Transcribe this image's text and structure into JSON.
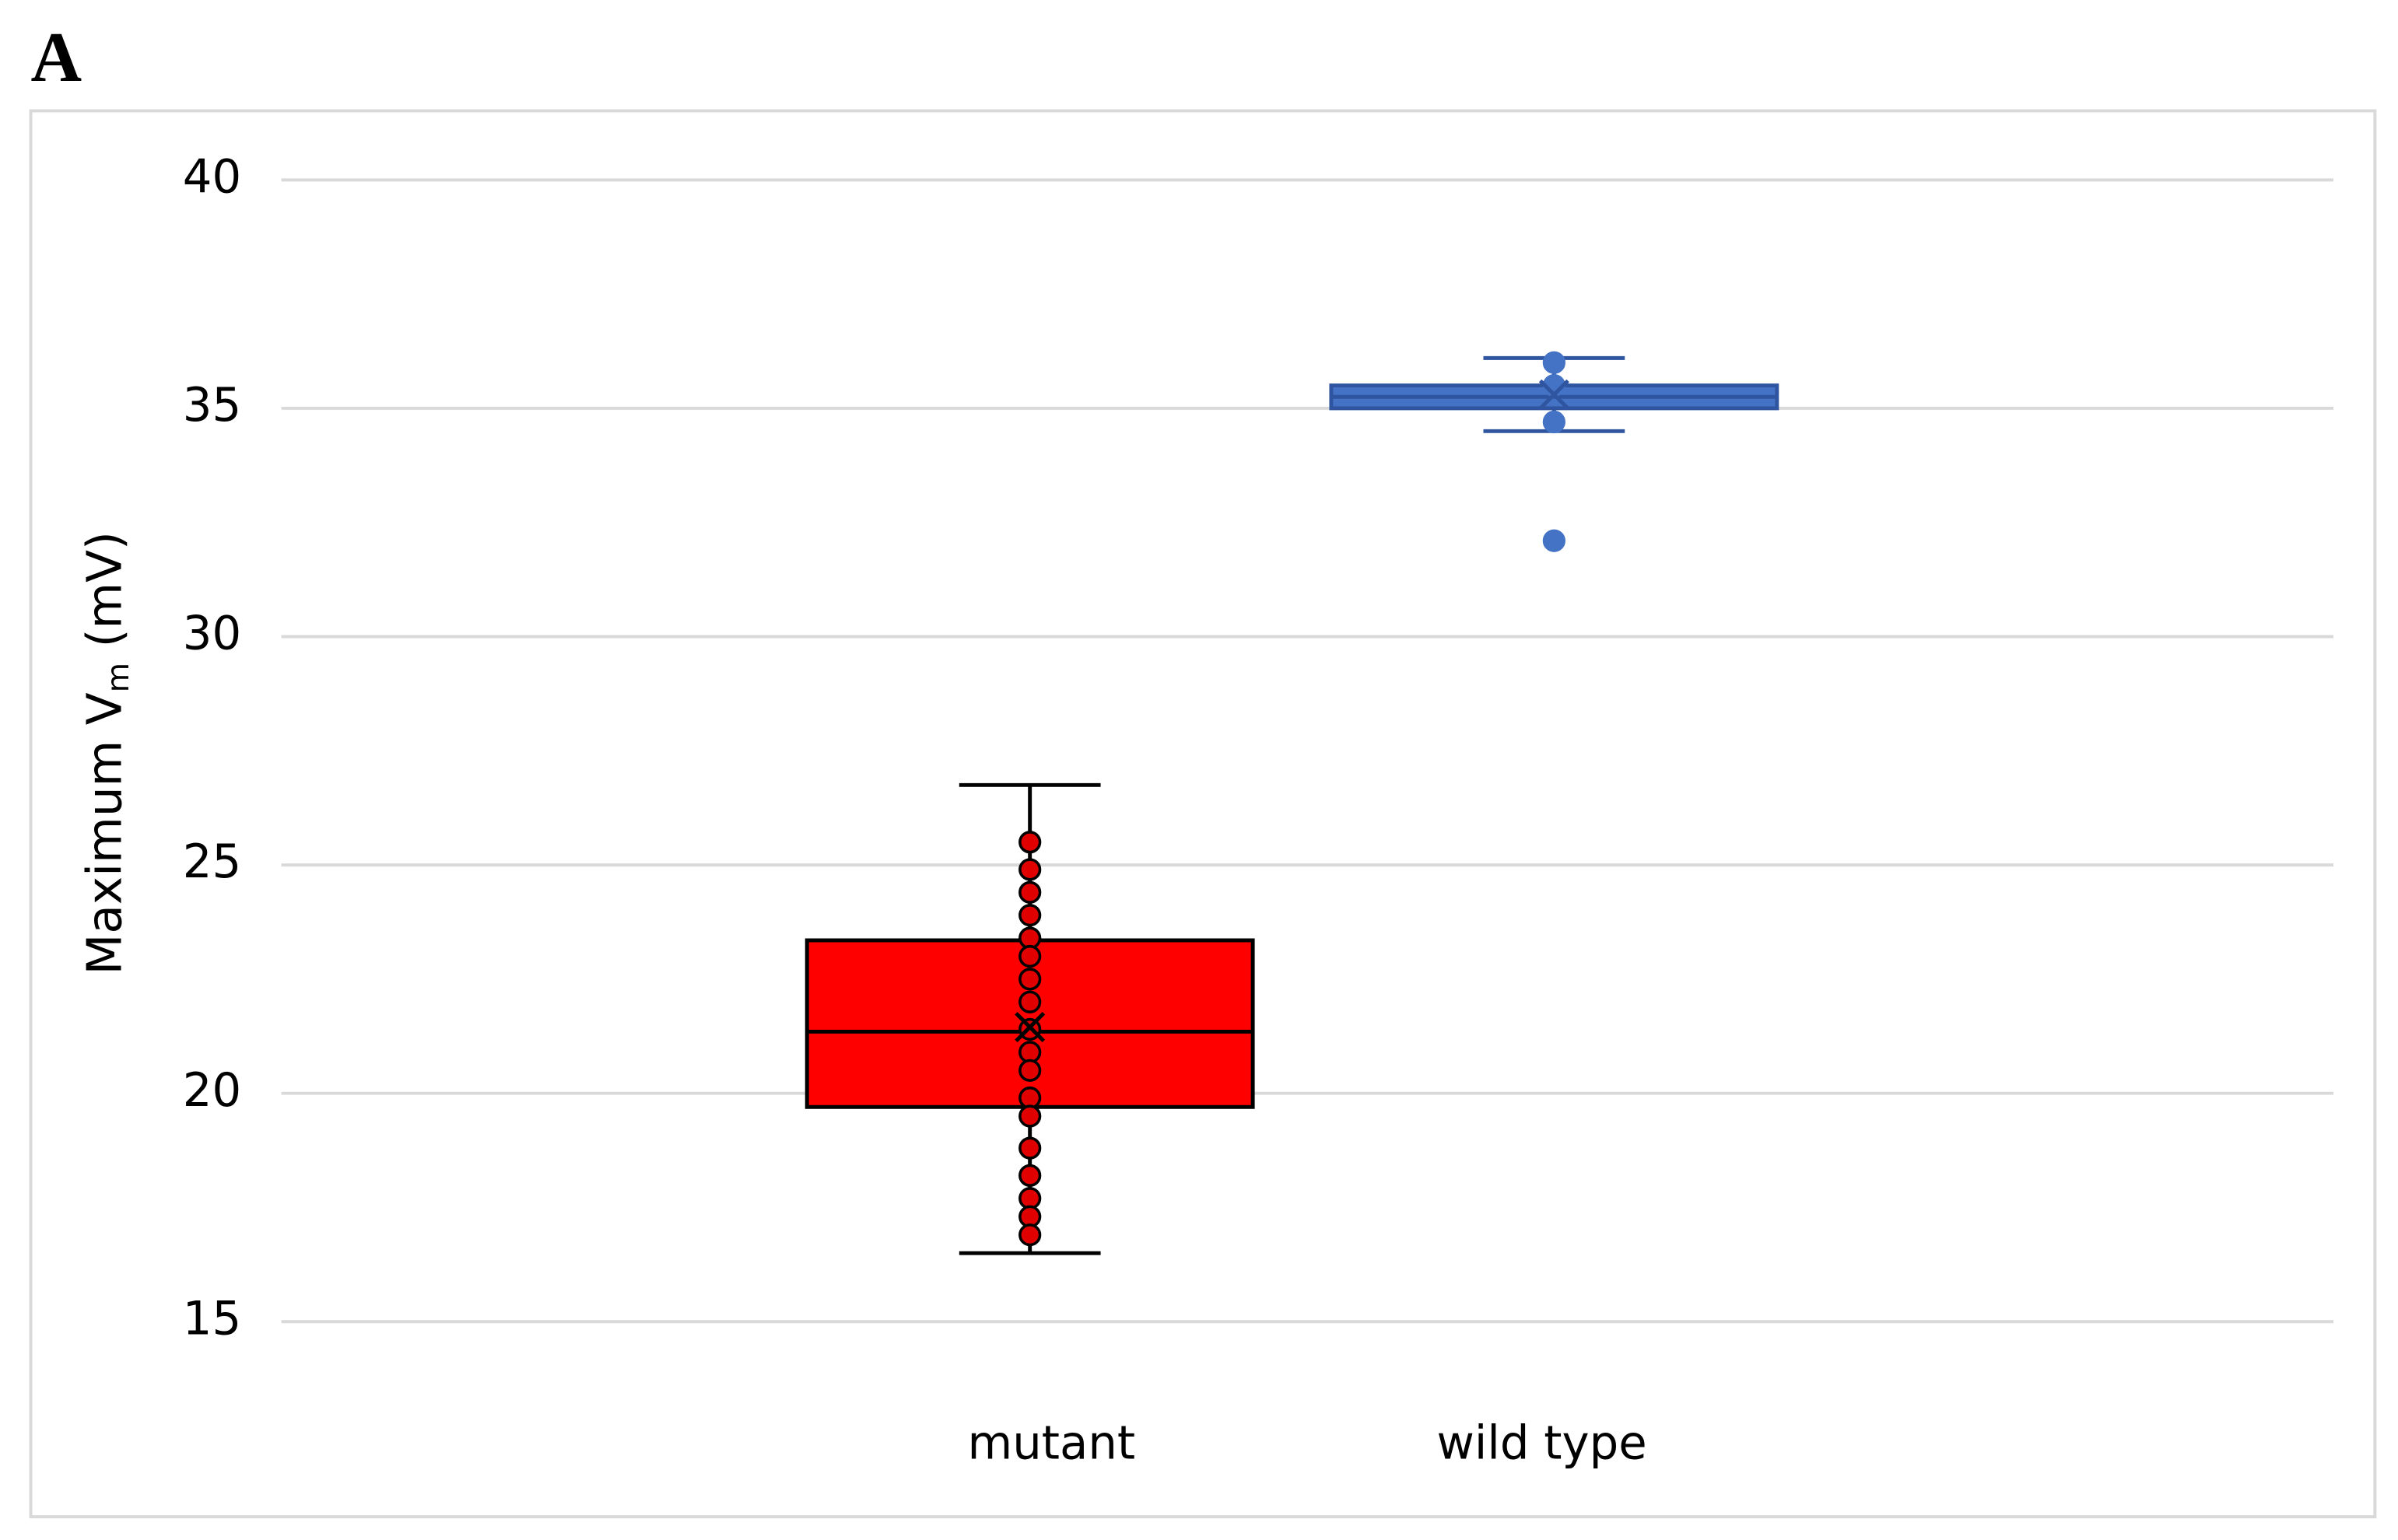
{
  "panel_label": "A",
  "chart_data": {
    "type": "box",
    "ylabel": {
      "text": "Maximum  V",
      "subscript": "m",
      "suffix": " (mV)"
    },
    "categories": [
      "mutant",
      "wild type"
    ],
    "ylim": [
      15,
      40
    ],
    "yticks": [
      15,
      20,
      25,
      30,
      35,
      40
    ],
    "grid": true,
    "boxes": [
      {
        "color": "#ff0000",
        "point_color": "#e00000",
        "edge_color": "#000000",
        "whisker_low": 16.5,
        "q1": 19.7,
        "median": 21.35,
        "q3": 23.35,
        "whisker_high": 26.75,
        "mean": 21.45,
        "points": [
          25.5,
          24.9,
          24.4,
          23.9,
          23.4,
          23.0,
          22.5,
          22.0,
          21.4,
          20.9,
          20.5,
          19.9,
          19.5,
          18.8,
          18.2,
          17.7,
          17.3,
          16.9
        ]
      },
      {
        "color": "#4472c4",
        "point_color": "#4472c4",
        "edge_color": "#2f55a0",
        "whisker_low": 34.5,
        "q1": 35.0,
        "median": 35.25,
        "q3": 35.5,
        "whisker_high": 36.1,
        "mean": 35.3,
        "points": [
          36.0,
          35.5,
          34.7,
          32.1
        ]
      }
    ]
  }
}
